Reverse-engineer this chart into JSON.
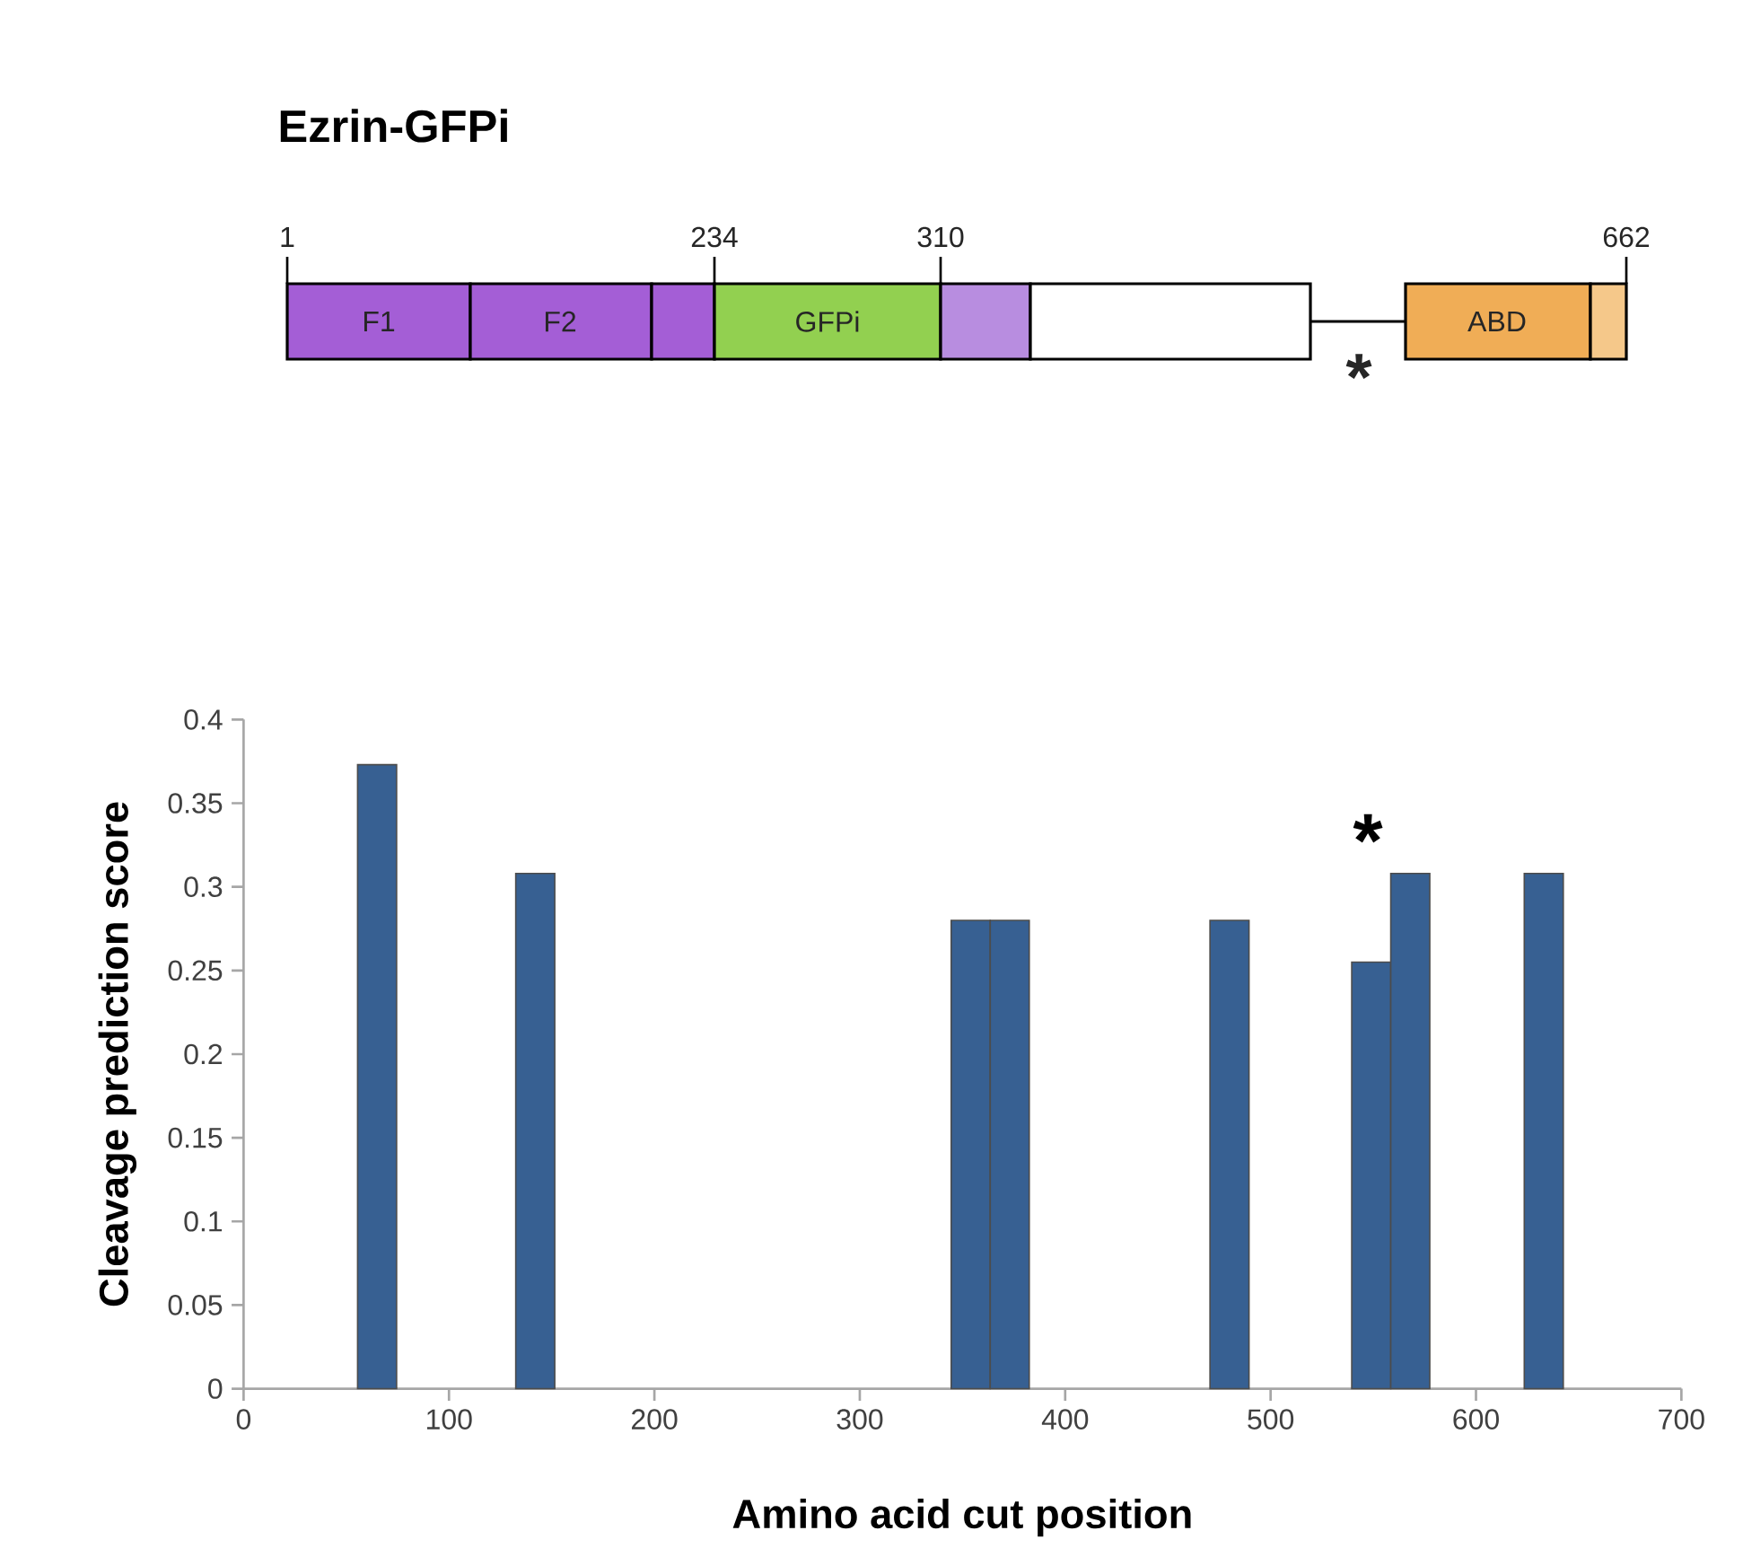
{
  "chart_data": [
    {
      "type": "other",
      "title": "Ezrin-GFPi",
      "annotations": [
        "1",
        "234",
        "310",
        "662",
        "F1",
        "F2",
        "GFPi",
        "ABD",
        "*"
      ]
    },
    {
      "type": "bar",
      "xlabel": "Amino acid cut position",
      "ylabel": "Cleavage prediction score",
      "x": [
        65,
        142,
        354,
        373,
        480,
        549,
        568,
        633
      ],
      "series": [
        {
          "color": "#376092",
          "values": [
            0.373,
            0.308,
            0.28,
            0.28,
            0.28,
            0.255,
            0.308,
            0.308
          ]
        }
      ],
      "xlim": [
        0,
        700
      ],
      "xticks": [
        0,
        100,
        200,
        300,
        400,
        500,
        600,
        700
      ],
      "ylim": [
        0,
        0.4
      ],
      "yticks": [
        0,
        0.05,
        0.1,
        0.15,
        0.2,
        0.25,
        0.3,
        0.35,
        0.4
      ],
      "grid": false,
      "annotations": [
        "*"
      ]
    }
  ]
}
